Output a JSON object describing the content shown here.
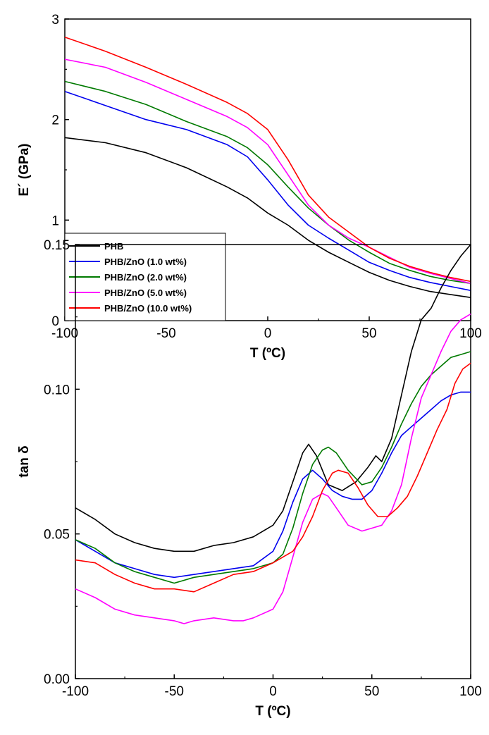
{
  "chart_data": [
    {
      "type": "line",
      "xlabel": "T (ºC)",
      "ylabel": "E´ (GPa)",
      "xlim": [
        -100,
        100
      ],
      "ylim": [
        0,
        3
      ],
      "xticks": [
        -100,
        -50,
        0,
        50,
        100
      ],
      "yticks": [
        0,
        1,
        2,
        3
      ],
      "xtick_labels": [
        "-100",
        "-50",
        "0",
        "50",
        "100"
      ],
      "ytick_labels": [
        "0",
        "1",
        "2",
        "3"
      ],
      "legend": "bottom-left",
      "grid": false,
      "series": [
        {
          "name": "PHB",
          "color": "#000000",
          "x": [
            -100,
            -80,
            -60,
            -40,
            -20,
            -10,
            0,
            10,
            20,
            30,
            40,
            50,
            60,
            70,
            80,
            90,
            100
          ],
          "y": [
            1.82,
            1.77,
            1.67,
            1.52,
            1.33,
            1.22,
            1.07,
            0.95,
            0.8,
            0.68,
            0.58,
            0.48,
            0.4,
            0.34,
            0.29,
            0.26,
            0.23
          ]
        },
        {
          "name": "PHB/ZnO (1.0 wt%)",
          "color": "#0000ee",
          "x": [
            -100,
            -80,
            -60,
            -40,
            -20,
            -10,
            0,
            10,
            20,
            30,
            40,
            50,
            60,
            70,
            80,
            90,
            100
          ],
          "y": [
            2.28,
            2.14,
            2.0,
            1.9,
            1.75,
            1.63,
            1.4,
            1.15,
            0.95,
            0.82,
            0.7,
            0.58,
            0.5,
            0.43,
            0.38,
            0.34,
            0.3
          ]
        },
        {
          "name": "PHB/ZnO (2.0 wt%)",
          "color": "#007a00",
          "x": [
            -100,
            -80,
            -60,
            -40,
            -20,
            -10,
            0,
            10,
            20,
            30,
            40,
            50,
            60,
            70,
            80,
            90,
            100
          ],
          "y": [
            2.38,
            2.28,
            2.15,
            1.98,
            1.83,
            1.72,
            1.55,
            1.33,
            1.12,
            0.95,
            0.8,
            0.68,
            0.57,
            0.5,
            0.44,
            0.4,
            0.37
          ]
        },
        {
          "name": "PHB/ZnO (5.0 wt%)",
          "color": "#ff00ff",
          "x": [
            -100,
            -80,
            -60,
            -40,
            -20,
            -10,
            0,
            10,
            20,
            30,
            40,
            50,
            60,
            70,
            80,
            90,
            100
          ],
          "y": [
            2.6,
            2.52,
            2.37,
            2.2,
            2.03,
            1.92,
            1.75,
            1.45,
            1.15,
            0.95,
            0.82,
            0.73,
            0.63,
            0.53,
            0.47,
            0.42,
            0.37
          ]
        },
        {
          "name": "PHB/ZnO (10.0 wt%)",
          "color": "#ff0000",
          "x": [
            -100,
            -80,
            -60,
            -40,
            -20,
            -10,
            0,
            10,
            20,
            30,
            40,
            50,
            60,
            70,
            80,
            90,
            100
          ],
          "y": [
            2.82,
            2.68,
            2.52,
            2.35,
            2.17,
            2.06,
            1.9,
            1.6,
            1.25,
            1.03,
            0.88,
            0.73,
            0.62,
            0.54,
            0.48,
            0.43,
            0.39
          ]
        }
      ]
    },
    {
      "type": "line",
      "xlabel": "T (ºC)",
      "ylabel": "tan δ",
      "xlim": [
        -100,
        100
      ],
      "ylim": [
        0,
        0.15
      ],
      "xticks": [
        -100,
        -50,
        0,
        50,
        100
      ],
      "yticks": [
        0,
        0.05,
        0.1,
        0.15
      ],
      "xtick_labels": [
        "-100",
        "-50",
        "0",
        "50",
        "100"
      ],
      "ytick_labels": [
        "0.00",
        "0.05",
        "0.10",
        "0.15"
      ],
      "grid": false,
      "series": [
        {
          "name": "PHB",
          "color": "#000000",
          "x": [
            -100,
            -90,
            -80,
            -70,
            -60,
            -50,
            -40,
            -30,
            -20,
            -10,
            0,
            5,
            10,
            15,
            18,
            22,
            28,
            35,
            42,
            48,
            52,
            55,
            60,
            65,
            70,
            75,
            80,
            85,
            90,
            95,
            100
          ],
          "y": [
            0.059,
            0.055,
            0.05,
            0.047,
            0.045,
            0.044,
            0.044,
            0.046,
            0.047,
            0.049,
            0.053,
            0.058,
            0.068,
            0.078,
            0.081,
            0.077,
            0.067,
            0.065,
            0.068,
            0.073,
            0.077,
            0.075,
            0.083,
            0.098,
            0.113,
            0.124,
            0.128,
            0.135,
            0.141,
            0.146,
            0.15
          ]
        },
        {
          "name": "PHB/ZnO (1.0 wt%)",
          "color": "#0000ee",
          "x": [
            -100,
            -90,
            -80,
            -70,
            -60,
            -50,
            -40,
            -30,
            -20,
            -10,
            0,
            5,
            10,
            15,
            20,
            25,
            30,
            35,
            40,
            45,
            50,
            55,
            60,
            65,
            70,
            75,
            80,
            85,
            90,
            95,
            100
          ],
          "y": [
            0.048,
            0.044,
            0.04,
            0.038,
            0.036,
            0.035,
            0.036,
            0.037,
            0.038,
            0.039,
            0.044,
            0.051,
            0.061,
            0.069,
            0.072,
            0.069,
            0.065,
            0.063,
            0.062,
            0.062,
            0.065,
            0.071,
            0.078,
            0.084,
            0.087,
            0.09,
            0.093,
            0.096,
            0.098,
            0.099,
            0.099
          ]
        },
        {
          "name": "PHB/ZnO (2.0 wt%)",
          "color": "#007a00",
          "x": [
            -100,
            -90,
            -80,
            -70,
            -60,
            -50,
            -40,
            -30,
            -20,
            -10,
            0,
            5,
            10,
            15,
            20,
            25,
            28,
            32,
            38,
            45,
            50,
            55,
            60,
            65,
            70,
            75,
            80,
            85,
            90,
            95,
            100
          ],
          "y": [
            0.048,
            0.045,
            0.04,
            0.037,
            0.035,
            0.033,
            0.035,
            0.036,
            0.037,
            0.038,
            0.04,
            0.043,
            0.052,
            0.064,
            0.074,
            0.079,
            0.08,
            0.078,
            0.072,
            0.067,
            0.068,
            0.073,
            0.08,
            0.088,
            0.095,
            0.101,
            0.105,
            0.108,
            0.111,
            0.112,
            0.113
          ]
        },
        {
          "name": "PHB/ZnO (5.0 wt%)",
          "color": "#ff00ff",
          "x": [
            -100,
            -90,
            -80,
            -70,
            -60,
            -50,
            -45,
            -40,
            -30,
            -20,
            -15,
            -10,
            0,
            5,
            10,
            15,
            20,
            25,
            28,
            32,
            38,
            45,
            50,
            55,
            60,
            65,
            70,
            75,
            80,
            85,
            90,
            95,
            100
          ],
          "y": [
            0.031,
            0.028,
            0.024,
            0.022,
            0.021,
            0.02,
            0.019,
            0.02,
            0.021,
            0.02,
            0.02,
            0.021,
            0.024,
            0.03,
            0.042,
            0.054,
            0.062,
            0.064,
            0.063,
            0.059,
            0.053,
            0.051,
            0.052,
            0.053,
            0.058,
            0.067,
            0.083,
            0.097,
            0.105,
            0.113,
            0.12,
            0.124,
            0.126
          ]
        },
        {
          "name": "PHB/ZnO (10.0 wt%)",
          "color": "#ff0000",
          "x": [
            -100,
            -90,
            -80,
            -70,
            -60,
            -50,
            -40,
            -30,
            -20,
            -10,
            0,
            10,
            15,
            20,
            25,
            30,
            33,
            38,
            43,
            48,
            53,
            58,
            63,
            68,
            73,
            78,
            83,
            88,
            92,
            96,
            100
          ],
          "y": [
            0.041,
            0.04,
            0.036,
            0.033,
            0.031,
            0.031,
            0.03,
            0.033,
            0.036,
            0.037,
            0.04,
            0.044,
            0.049,
            0.056,
            0.065,
            0.071,
            0.072,
            0.071,
            0.066,
            0.06,
            0.056,
            0.056,
            0.059,
            0.063,
            0.07,
            0.078,
            0.086,
            0.093,
            0.102,
            0.107,
            0.109
          ]
        }
      ]
    }
  ]
}
